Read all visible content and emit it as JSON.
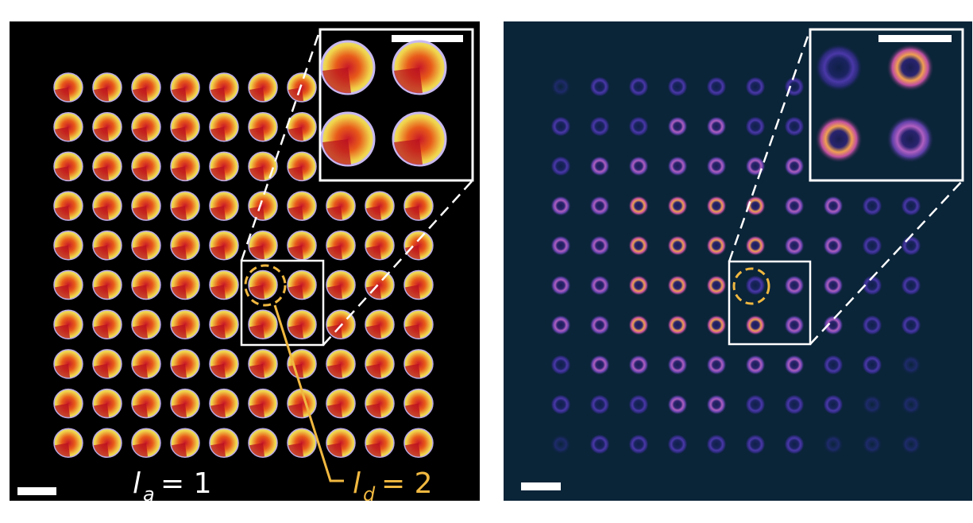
{
  "left_panel": {
    "grid": {
      "rows": 10,
      "cols": 10,
      "missing_upper_right": true
    },
    "label_a": "l",
    "label_a_sub": "a",
    "label_a_value": "= 1",
    "label_d": "l",
    "label_d_sub": "d",
    "label_d_value": "= 2",
    "colors": {
      "background": "#000000",
      "disk_outer": "#f0e050",
      "disk_inner": "#c81828",
      "rim": "#b9a8e8",
      "highlight": "#f0b840"
    }
  },
  "right_panel": {
    "grid": {
      "rows": 10,
      "cols": 10
    },
    "colors": {
      "background": "#0a2438",
      "ring_dim": "#3a2f90",
      "ring_mid": "#a050c0",
      "ring_bright": "#f0a050"
    }
  }
}
